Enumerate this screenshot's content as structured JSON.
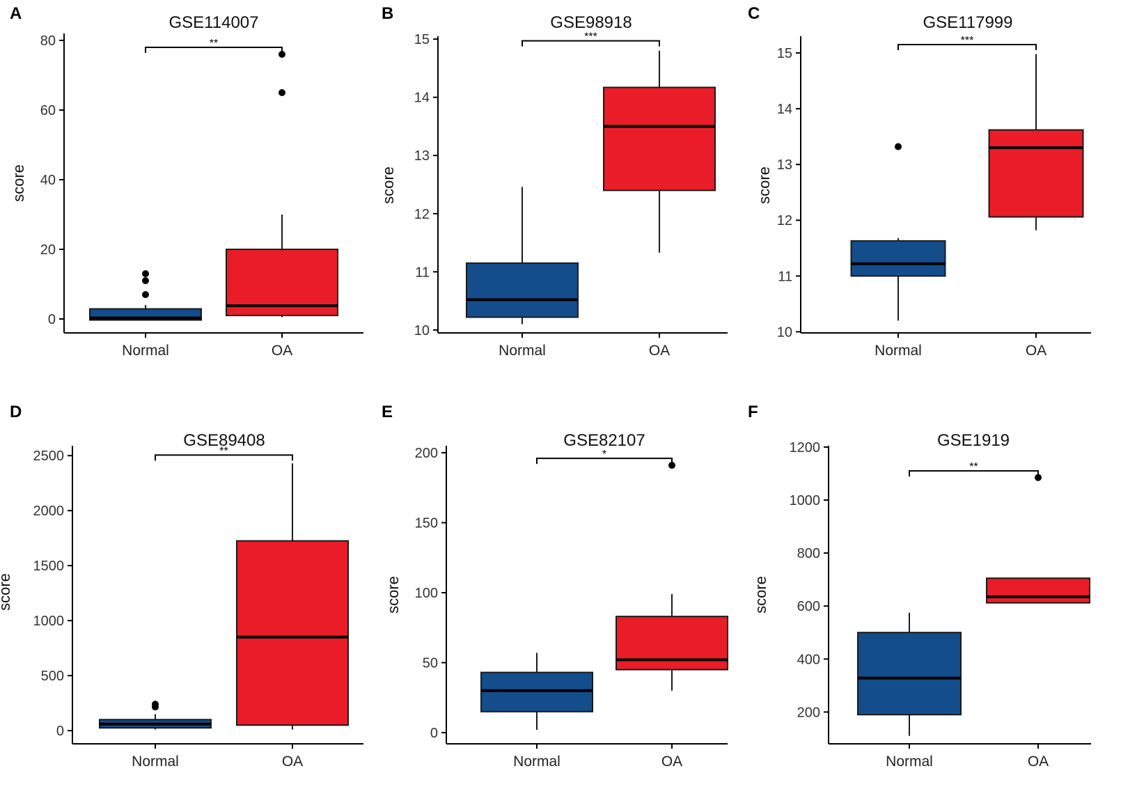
{
  "colors": {
    "normal": "#134d8c",
    "oa": "#ea1c27",
    "axis": "#000000",
    "outline": "#1a1a1a"
  },
  "chart_data": [
    {
      "panel": "A",
      "type": "box",
      "title": "GSE114007",
      "ylabel": "score",
      "categories": [
        "Normal",
        "OA"
      ],
      "ylim": [
        -4,
        82
      ],
      "yticks": [
        0,
        20,
        40,
        60,
        80
      ],
      "ytick_labels": [
        "0",
        "20",
        "40",
        "60",
        "80"
      ],
      "significance": "**",
      "bracket_y": 78,
      "series": [
        {
          "name": "Normal",
          "whisker_low": -0.3,
          "q1": -0.3,
          "median": 0.3,
          "q3": 2.9,
          "whisker_high": 4,
          "outliers": [
            7,
            11,
            13
          ]
        },
        {
          "name": "OA",
          "whisker_low": 0.5,
          "q1": 1,
          "median": 3.8,
          "q3": 20,
          "whisker_high": 30,
          "outliers": [
            65,
            76
          ]
        }
      ]
    },
    {
      "panel": "B",
      "type": "box",
      "title": "GSE98918",
      "ylabel": "score",
      "categories": [
        "Normal",
        "OA"
      ],
      "ylim": [
        9.95,
        15.05
      ],
      "yticks": [
        10,
        11,
        12,
        13,
        14,
        15
      ],
      "ytick_labels": [
        "10",
        "11",
        "12",
        "13",
        "14",
        "15"
      ],
      "significance": "***",
      "bracket_y": 14.97,
      "series": [
        {
          "name": "Normal",
          "whisker_low": 10.1,
          "q1": 10.22,
          "median": 10.52,
          "q3": 11.15,
          "whisker_high": 12.46,
          "outliers": []
        },
        {
          "name": "OA",
          "whisker_low": 11.33,
          "q1": 12.4,
          "median": 13.5,
          "q3": 14.17,
          "whisker_high": 14.8,
          "outliers": []
        }
      ]
    },
    {
      "panel": "C",
      "type": "box",
      "title": "GSE117999",
      "ylabel": "score",
      "categories": [
        "Normal",
        "OA"
      ],
      "ylim": [
        9.98,
        15.3
      ],
      "yticks": [
        10,
        11,
        12,
        13,
        14,
        15
      ],
      "ytick_labels": [
        "10",
        "11",
        "12",
        "13",
        "14",
        "15"
      ],
      "significance": "***",
      "bracket_y": 15.15,
      "series": [
        {
          "name": "Normal",
          "whisker_low": 10.2,
          "q1": 11.0,
          "median": 11.22,
          "q3": 11.63,
          "whisker_high": 11.68,
          "outliers": [
            13.32
          ]
        },
        {
          "name": "OA",
          "whisker_low": 11.82,
          "q1": 12.06,
          "median": 13.3,
          "q3": 13.62,
          "whisker_high": 14.98,
          "outliers": []
        }
      ]
    },
    {
      "panel": "D",
      "type": "box",
      "title": "GSE89408",
      "ylabel": "score",
      "categories": [
        "Normal",
        "OA"
      ],
      "ylim": [
        -120,
        2590
      ],
      "yticks": [
        0,
        500,
        1000,
        1500,
        2000,
        2500
      ],
      "ytick_labels": [
        "0",
        "500",
        "1000",
        "1500",
        "2000",
        "2500"
      ],
      "significance": "**",
      "bracket_y": 2505,
      "series": [
        {
          "name": "Normal",
          "whisker_low": 10,
          "q1": 25,
          "median": 60,
          "q3": 100,
          "whisker_high": 150,
          "outliers": [
            215,
            240
          ]
        },
        {
          "name": "OA",
          "whisker_low": 10,
          "q1": 50,
          "median": 850,
          "q3": 1725,
          "whisker_high": 2430,
          "outliers": []
        }
      ]
    },
    {
      "panel": "E",
      "type": "box",
      "title": "GSE82107",
      "ylabel": "score",
      "categories": [
        "Normal",
        "OA"
      ],
      "ylim": [
        -8,
        205
      ],
      "yticks": [
        0,
        50,
        100,
        150,
        200
      ],
      "ytick_labels": [
        "0",
        "50",
        "100",
        "150",
        "200"
      ],
      "significance": "*",
      "bracket_y": 196,
      "series": [
        {
          "name": "Normal",
          "whisker_low": 2,
          "q1": 15,
          "median": 30,
          "q3": 43,
          "whisker_high": 57,
          "outliers": []
        },
        {
          "name": "OA",
          "whisker_low": 30,
          "q1": 45,
          "median": 52,
          "q3": 83,
          "whisker_high": 99,
          "outliers": [
            191
          ]
        }
      ]
    },
    {
      "panel": "F",
      "type": "box",
      "title": "GSE1919",
      "ylabel": "score",
      "categories": [
        "Normal",
        "OA"
      ],
      "ylim": [
        80,
        1205
      ],
      "yticks": [
        200,
        400,
        600,
        800,
        1000,
        1200
      ],
      "ytick_labels": [
        "200",
        "400",
        "600",
        "800",
        "1000",
        "1200"
      ],
      "significance": "**",
      "bracket_y": 1110,
      "series": [
        {
          "name": "Normal",
          "whisker_low": 110,
          "q1": 190,
          "median": 328,
          "q3": 500,
          "whisker_high": 575,
          "outliers": []
        },
        {
          "name": "OA",
          "whisker_low": 612,
          "q1": 612,
          "median": 635,
          "q3": 705,
          "whisker_high": 705,
          "outliers": [
            1085
          ]
        }
      ]
    }
  ]
}
